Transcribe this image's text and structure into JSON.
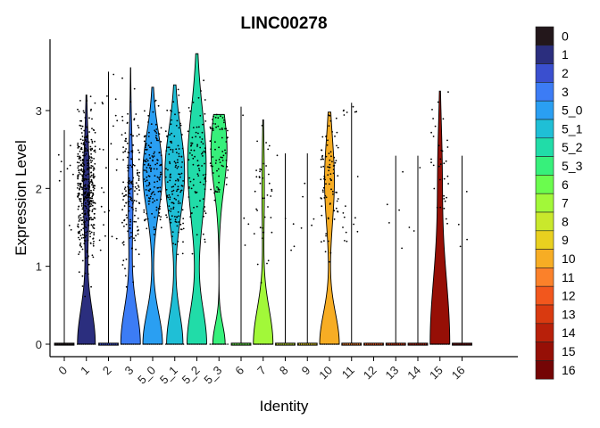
{
  "chart_data": {
    "type": "violin",
    "title": "LINC00278",
    "xlabel": "Identity",
    "ylabel": "Expression Level",
    "ylim": [
      -0.15,
      3.8
    ],
    "yticks": [
      0,
      1,
      2,
      3
    ],
    "categories": [
      "0",
      "1",
      "2",
      "3",
      "5_0",
      "5_1",
      "5_2",
      "5_3",
      "6",
      "7",
      "8",
      "9",
      "10",
      "11",
      "12",
      "13",
      "14",
      "15",
      "16"
    ],
    "colors": [
      "#23171b",
      "#2b2e7e",
      "#3a4fcf",
      "#3c7cf5",
      "#2a9ff2",
      "#1fbfd6",
      "#21dca8",
      "#37f07b",
      "#6bfc4e",
      "#a2f839",
      "#c9e82c",
      "#e9d01f",
      "#f7ad24",
      "#fb812a",
      "#f2571d",
      "#d93a10",
      "#b8200a",
      "#960f06",
      "#740505"
    ],
    "legend_position": "right",
    "grid": false,
    "points": {
      "max": [
        2.75,
        3.2,
        3.5,
        3.55,
        3.3,
        3.33,
        3.73,
        2.95,
        3.05,
        2.88,
        2.45,
        2.45,
        2.98,
        3.1,
        0.0,
        2.42,
        2.42,
        3.25,
        2.42
      ],
      "count": [
        10,
        420,
        25,
        170,
        150,
        140,
        90,
        70,
        4,
        40,
        5,
        5,
        90,
        18,
        0,
        5,
        3,
        35,
        4
      ]
    }
  }
}
